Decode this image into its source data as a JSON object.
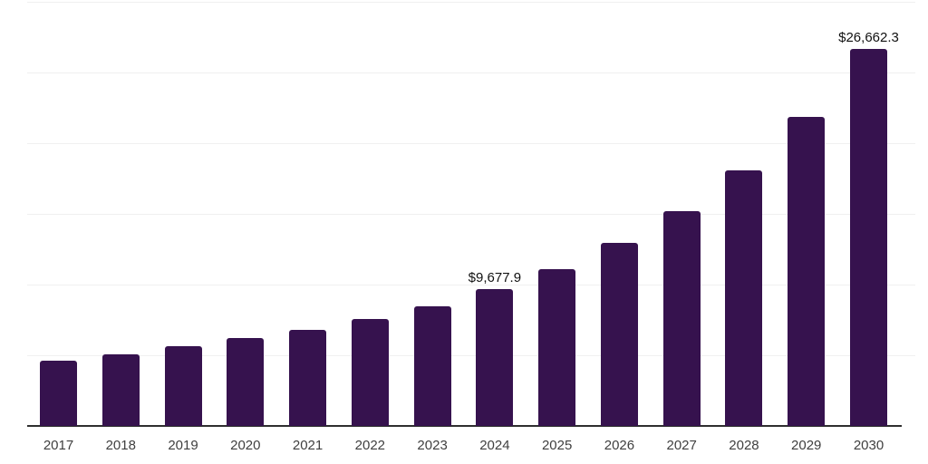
{
  "chart_data": {
    "type": "bar",
    "title": "",
    "xlabel": "",
    "ylabel": "",
    "categories": [
      "2017",
      "2018",
      "2019",
      "2020",
      "2021",
      "2022",
      "2023",
      "2024",
      "2025",
      "2026",
      "2027",
      "2028",
      "2029",
      "2030"
    ],
    "values": [
      4600,
      5060,
      5640,
      6215,
      6790,
      7560,
      8490,
      9677.9,
      11090,
      12950,
      15190,
      18075,
      21860,
      26662.3
    ],
    "data_labels": [
      {
        "category": "2024",
        "text": "$9,677.9"
      },
      {
        "category": "2030",
        "text": "$26,662.3"
      }
    ],
    "ylim": [
      0,
      30000
    ],
    "gridline_step": 5000,
    "grid": "horizontal-only",
    "legend": "none",
    "y_axis_tick_labels": "none",
    "colors": {
      "bar": "#36124E",
      "axis_line": "#2F2F2F",
      "gridline": "#F0F0F0",
      "tick_label": "#3F3F3F",
      "data_label": "#111111",
      "background": "#FFFFFF"
    }
  }
}
